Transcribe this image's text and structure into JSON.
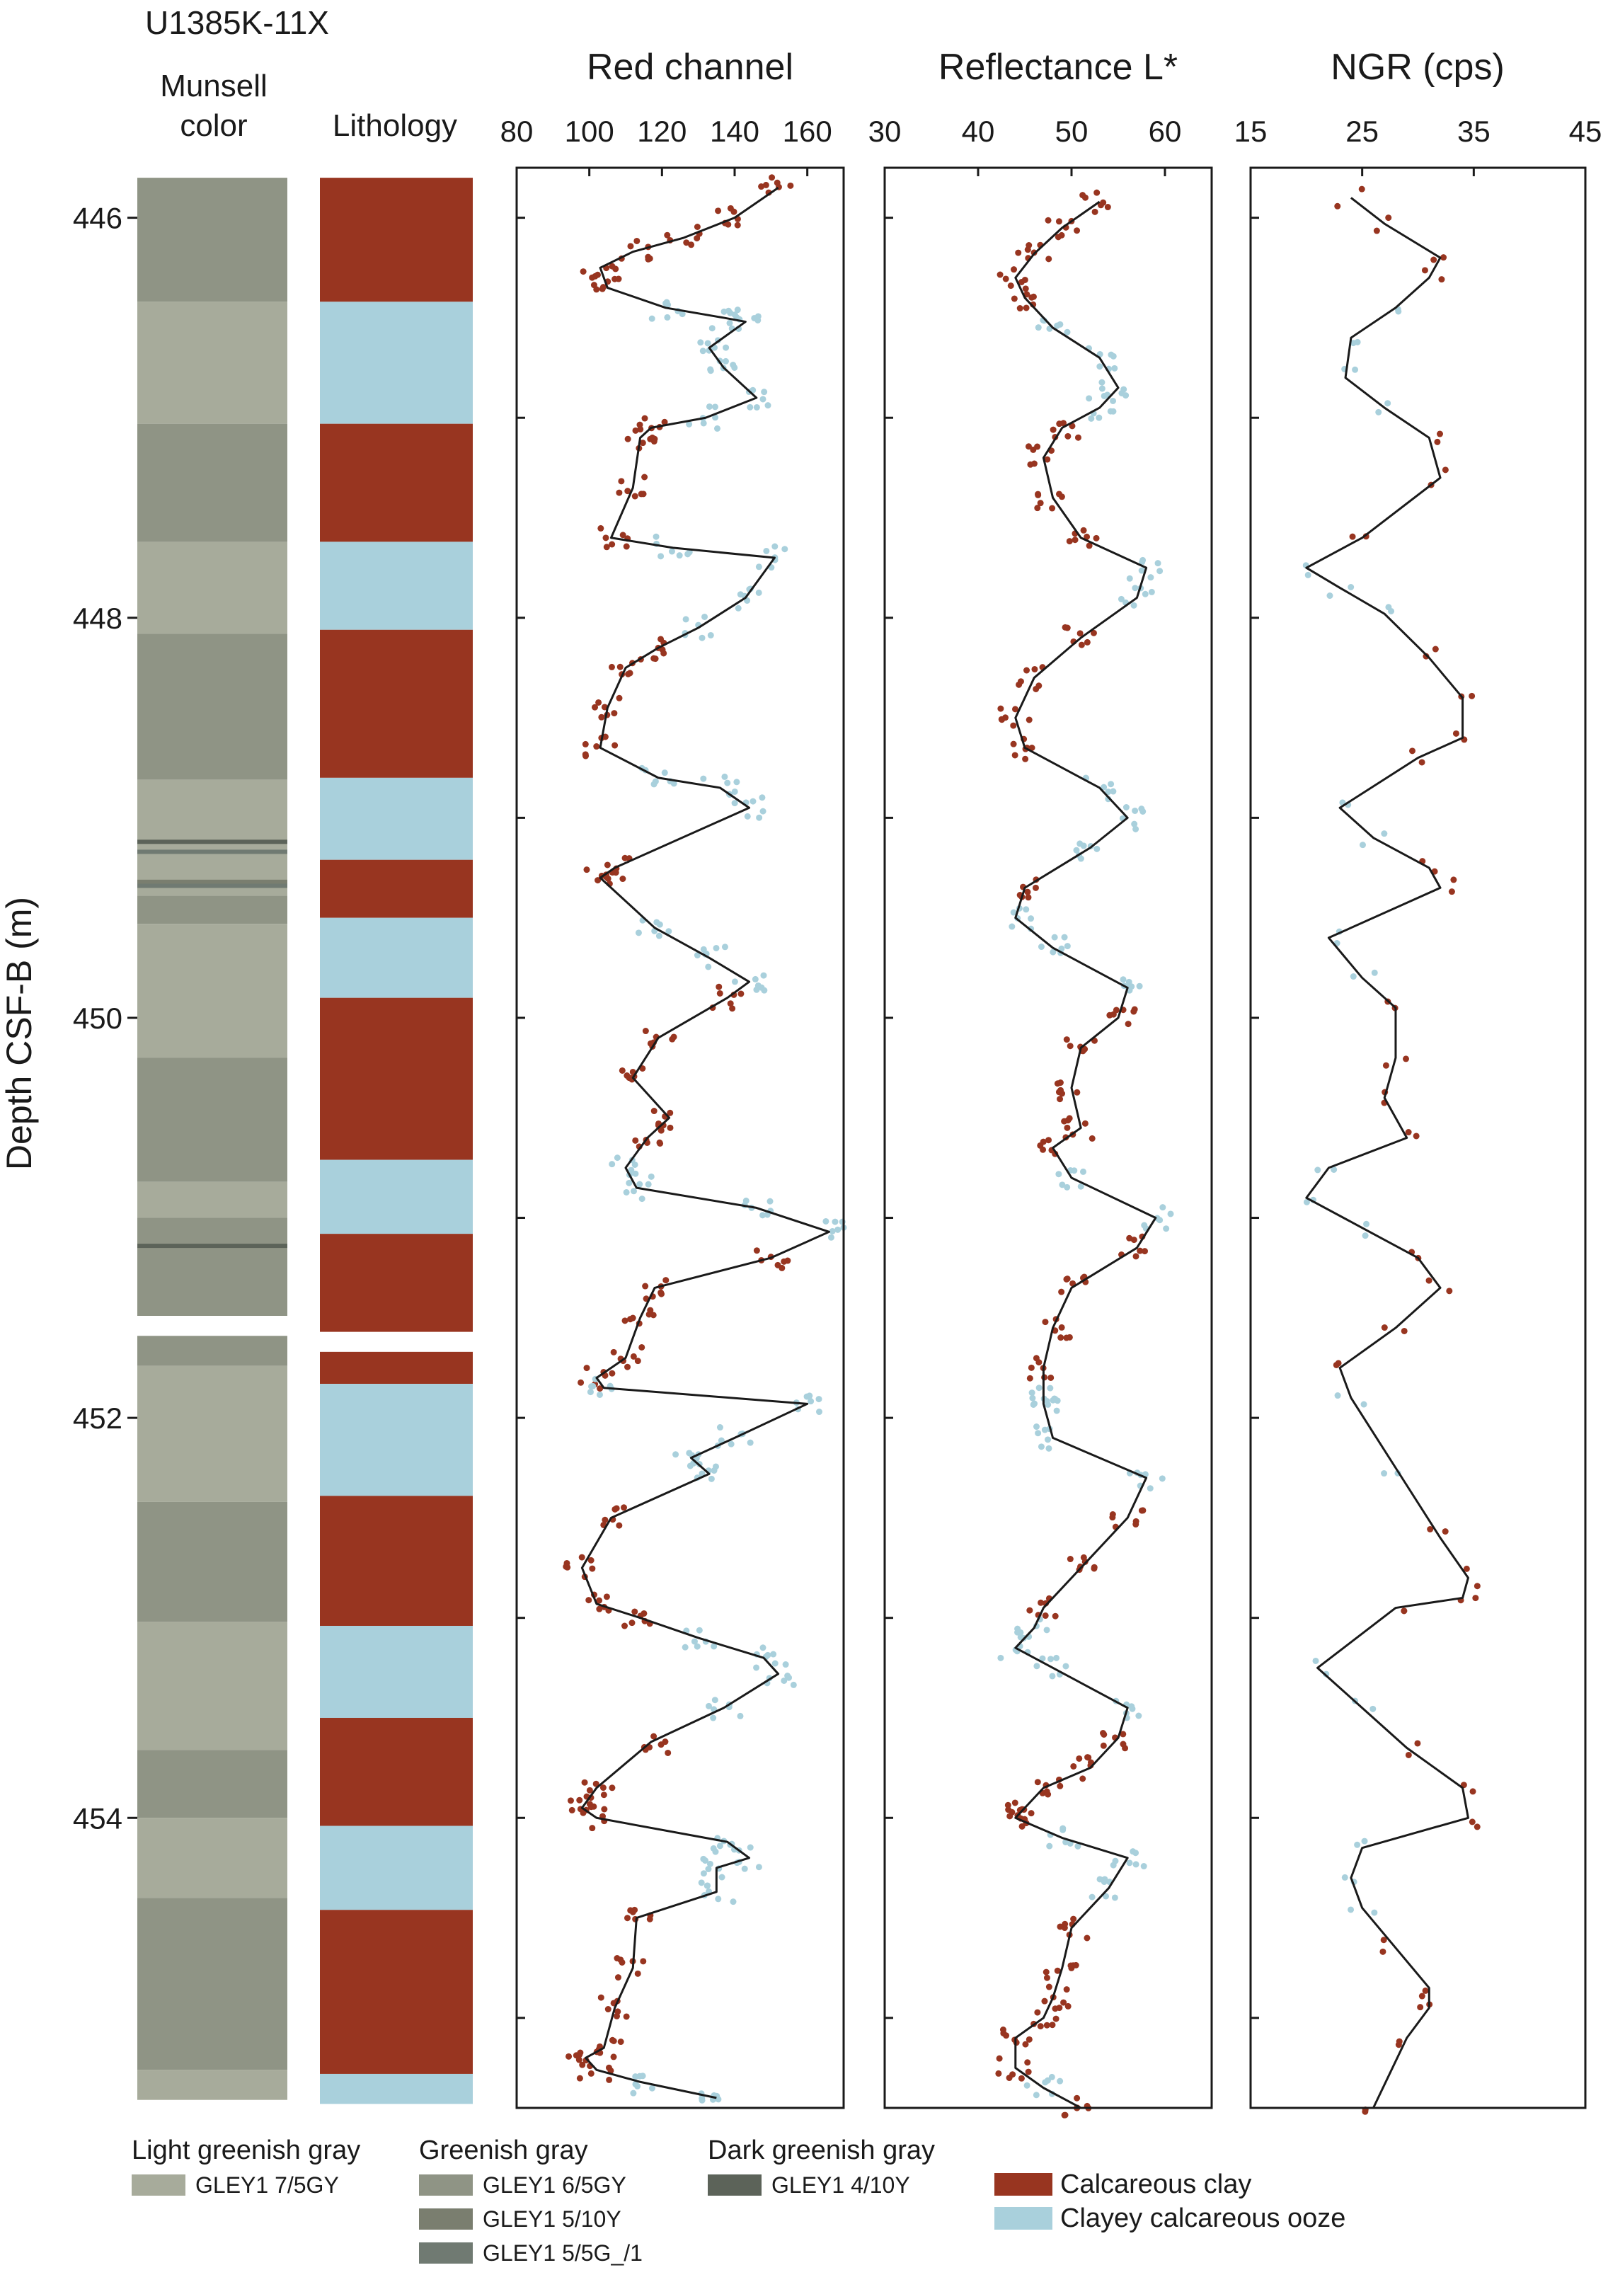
{
  "core_id": "U1385K-11X",
  "y_axis": {
    "label": "Depth CSF-B (m)",
    "range": [
      445.75,
      455.45
    ],
    "ticks": [
      446,
      448,
      450,
      452,
      454
    ],
    "minor_ticks": [
      446,
      447,
      448,
      449,
      450,
      451,
      452,
      453,
      454,
      455
    ]
  },
  "headers": {
    "munsell": [
      "Munsell",
      "color"
    ],
    "lithology": "Lithology"
  },
  "colors": {
    "light_greenish_gray": "#a7ab9b",
    "greenish_gray_6_5GY": "#8f9485",
    "greenish_gray_5_10Y": "#7a7e6f",
    "greenish_gray_5_5G_1": "#707a72",
    "dark_greenish_gray": "#5c6359",
    "calcareous_clay": "#983520",
    "clayey_calcareous_ooze": "#a9d0dc",
    "line": "#1a1a1a"
  },
  "munsell_intervals": [
    {
      "top": 445.8,
      "bottom": 446.42,
      "color": "greenish_gray_6_5GY"
    },
    {
      "top": 446.42,
      "bottom": 447.03,
      "color": "light_greenish_gray"
    },
    {
      "top": 447.03,
      "bottom": 447.62,
      "color": "greenish_gray_6_5GY"
    },
    {
      "top": 447.62,
      "bottom": 448.08,
      "color": "light_greenish_gray"
    },
    {
      "top": 448.08,
      "bottom": 448.81,
      "color": "greenish_gray_6_5GY"
    },
    {
      "top": 448.81,
      "bottom": 449.39,
      "color": "light_greenish_gray"
    },
    {
      "top": 449.39,
      "bottom": 449.53,
      "color": "greenish_gray_6_5GY"
    },
    {
      "top": 449.53,
      "bottom": 450.2,
      "color": "light_greenish_gray"
    },
    {
      "top": 450.2,
      "bottom": 450.82,
      "color": "greenish_gray_6_5GY"
    },
    {
      "top": 450.82,
      "bottom": 451.0,
      "color": "light_greenish_gray"
    },
    {
      "top": 451.0,
      "bottom": 451.49,
      "color": "greenish_gray_6_5GY"
    },
    {
      "top": 451.59,
      "bottom": 451.74,
      "color": "greenish_gray_6_5GY"
    },
    {
      "top": 451.74,
      "bottom": 452.42,
      "color": "light_greenish_gray"
    },
    {
      "top": 452.42,
      "bottom": 453.02,
      "color": "greenish_gray_6_5GY"
    },
    {
      "top": 453.02,
      "bottom": 453.66,
      "color": "light_greenish_gray"
    },
    {
      "top": 453.66,
      "bottom": 454.0,
      "color": "greenish_gray_6_5GY"
    },
    {
      "top": 454.0,
      "bottom": 454.4,
      "color": "light_greenish_gray"
    },
    {
      "top": 454.4,
      "bottom": 455.26,
      "color": "greenish_gray_6_5GY"
    },
    {
      "top": 455.26,
      "bottom": 455.41,
      "color": "light_greenish_gray"
    }
  ],
  "munsell_thin_bands": [
    {
      "depth": 449.12,
      "color": "dark_greenish_gray"
    },
    {
      "depth": 449.17,
      "color": "greenish_gray_5_5G_1"
    },
    {
      "depth": 449.32,
      "color": "greenish_gray_5_10Y"
    },
    {
      "depth": 449.34,
      "color": "greenish_gray_5_5G_1"
    },
    {
      "depth": 451.14,
      "color": "dark_greenish_gray"
    }
  ],
  "lithology_intervals": [
    {
      "top": 445.8,
      "bottom": 446.42,
      "type": "calcareous_clay"
    },
    {
      "top": 446.42,
      "bottom": 447.03,
      "type": "clayey_calcareous_ooze"
    },
    {
      "top": 447.03,
      "bottom": 447.62,
      "type": "calcareous_clay"
    },
    {
      "top": 447.62,
      "bottom": 448.06,
      "type": "clayey_calcareous_ooze"
    },
    {
      "top": 448.06,
      "bottom": 448.8,
      "type": "calcareous_clay"
    },
    {
      "top": 448.8,
      "bottom": 449.21,
      "type": "clayey_calcareous_ooze"
    },
    {
      "top": 449.21,
      "bottom": 449.5,
      "type": "calcareous_clay"
    },
    {
      "top": 449.5,
      "bottom": 449.9,
      "type": "clayey_calcareous_ooze"
    },
    {
      "top": 449.9,
      "bottom": 450.71,
      "type": "calcareous_clay"
    },
    {
      "top": 450.71,
      "bottom": 451.08,
      "type": "clayey_calcareous_ooze"
    },
    {
      "top": 451.08,
      "bottom": 451.57,
      "type": "calcareous_clay"
    },
    {
      "top": 451.67,
      "bottom": 451.83,
      "type": "calcareous_clay"
    },
    {
      "top": 451.83,
      "bottom": 452.39,
      "type": "clayey_calcareous_ooze"
    },
    {
      "top": 452.39,
      "bottom": 453.04,
      "type": "calcareous_clay"
    },
    {
      "top": 453.04,
      "bottom": 453.5,
      "type": "clayey_calcareous_ooze"
    },
    {
      "top": 453.5,
      "bottom": 454.04,
      "type": "calcareous_clay"
    },
    {
      "top": 454.04,
      "bottom": 454.46,
      "type": "clayey_calcareous_ooze"
    },
    {
      "top": 454.46,
      "bottom": 455.28,
      "type": "calcareous_clay"
    },
    {
      "top": 455.28,
      "bottom": 455.43,
      "type": "clayey_calcareous_ooze"
    }
  ],
  "chart_data": [
    {
      "type": "line",
      "title": "Red channel",
      "xlim": [
        80,
        170
      ],
      "xticks": [
        80,
        100,
        120,
        140,
        160
      ],
      "y_reversed": true,
      "series": [
        {
          "x": [
            152,
            140,
            126,
            112,
            103,
            105,
            121,
            137,
            143,
            133,
            137,
            146,
            132,
            117,
            114,
            112,
            106,
            123,
            151,
            143,
            130,
            119,
            110,
            105,
            103,
            119,
            136,
            144,
            107,
            103,
            118,
            133,
            144,
            138,
            119,
            112,
            122,
            116,
            110,
            113,
            146,
            166,
            150,
            118,
            114,
            110,
            102,
            104,
            160,
            140,
            128,
            133,
            106,
            98,
            102,
            114,
            130,
            148,
            152,
            137,
            117,
            102,
            98,
            102,
            138,
            144,
            135,
            135,
            113,
            112,
            107,
            104,
            99,
            102,
            114,
            135
          ],
          "y": [
            445.85,
            446.0,
            446.1,
            446.17,
            446.25,
            446.35,
            446.45,
            446.5,
            446.52,
            446.65,
            446.75,
            446.9,
            447.0,
            447.05,
            447.1,
            447.35,
            447.6,
            447.65,
            447.7,
            447.9,
            448.05,
            448.15,
            448.25,
            448.45,
            448.65,
            448.8,
            448.85,
            448.95,
            449.25,
            449.3,
            449.55,
            449.7,
            449.82,
            449.9,
            450.1,
            450.3,
            450.5,
            450.6,
            450.75,
            450.85,
            450.95,
            451.07,
            451.2,
            451.35,
            451.5,
            451.7,
            451.8,
            451.85,
            451.93,
            452.1,
            452.2,
            452.28,
            452.5,
            452.75,
            452.93,
            453.0,
            453.1,
            453.2,
            453.28,
            453.45,
            453.62,
            453.85,
            453.95,
            454.0,
            454.12,
            454.2,
            454.25,
            454.37,
            454.5,
            454.75,
            454.95,
            455.15,
            455.2,
            455.26,
            455.32,
            455.4
          ]
        }
      ]
    },
    {
      "type": "line",
      "title": "Reflectance L*",
      "xlim": [
        30,
        65
      ],
      "xticks": [
        30,
        40,
        50,
        60
      ],
      "y_reversed": true,
      "series": [
        {
          "x": [
            53,
            49,
            46,
            44,
            45,
            48,
            53,
            55,
            53,
            49,
            47,
            48,
            51,
            58,
            57,
            51,
            46,
            44,
            45,
            53,
            56,
            52,
            45,
            44,
            48,
            56,
            55,
            51,
            50,
            51,
            48,
            50,
            59,
            57,
            50,
            48,
            47,
            47,
            47,
            48,
            58,
            56,
            51,
            47,
            46,
            44,
            48,
            56,
            55,
            52,
            47,
            45,
            44,
            49,
            56,
            54,
            50,
            49,
            48,
            47,
            44,
            44,
            47,
            51
          ],
          "y": [
            445.92,
            446.05,
            446.18,
            446.3,
            446.4,
            446.55,
            446.7,
            446.85,
            446.95,
            447.05,
            447.2,
            447.4,
            447.6,
            447.75,
            447.9,
            448.1,
            448.3,
            448.5,
            448.65,
            448.85,
            449.0,
            449.15,
            449.35,
            449.5,
            449.65,
            449.85,
            450.0,
            450.15,
            450.35,
            450.55,
            450.65,
            450.8,
            451.0,
            451.15,
            451.35,
            451.55,
            451.75,
            451.9,
            451.93,
            452.1,
            452.3,
            452.5,
            452.75,
            452.95,
            453.05,
            453.15,
            453.25,
            453.45,
            453.6,
            453.75,
            453.85,
            453.95,
            454.0,
            454.1,
            454.2,
            454.35,
            454.55,
            454.75,
            454.9,
            455.0,
            455.1,
            455.25,
            455.35,
            455.45
          ]
        }
      ]
    },
    {
      "type": "line",
      "title": "NGR (cps)",
      "xlim": [
        15,
        45
      ],
      "xticks": [
        15,
        25,
        35,
        45
      ],
      "y_reversed": true,
      "series": [
        {
          "x": [
            24,
            27,
            32,
            31,
            28,
            24,
            23.5,
            27,
            31,
            32,
            25,
            20,
            23,
            27,
            31,
            34,
            34,
            30,
            23,
            26,
            31,
            32,
            22,
            25,
            28,
            28,
            27,
            29,
            22,
            20,
            25,
            30,
            32,
            28,
            23,
            24,
            28,
            32,
            34.5,
            34,
            28,
            21,
            25,
            29,
            34,
            34.5,
            25,
            24,
            25,
            28,
            31,
            31,
            29,
            26
          ],
          "y": [
            445.9,
            446.03,
            446.2,
            446.3,
            446.45,
            446.6,
            446.8,
            446.95,
            447.1,
            447.3,
            447.6,
            447.75,
            447.85,
            447.98,
            448.2,
            448.4,
            448.6,
            448.7,
            448.95,
            449.1,
            449.25,
            449.35,
            449.6,
            449.8,
            449.95,
            450.2,
            450.4,
            450.6,
            450.75,
            450.9,
            451.05,
            451.2,
            451.35,
            451.55,
            451.75,
            451.9,
            452.25,
            452.6,
            452.8,
            452.9,
            452.95,
            453.25,
            453.45,
            453.65,
            453.85,
            454.0,
            454.15,
            454.3,
            454.45,
            454.65,
            454.85,
            454.95,
            455.1,
            455.45
          ]
        }
      ]
    }
  ],
  "legend": {
    "munsell_groups": [
      {
        "header": "Light greenish gray",
        "items": [
          {
            "label": "GLEY1 7/5GY",
            "color": "light_greenish_gray"
          }
        ]
      },
      {
        "header": "Greenish gray",
        "items": [
          {
            "label": "GLEY1 6/5GY",
            "color": "greenish_gray_6_5GY"
          },
          {
            "label": "GLEY1 5/10Y",
            "color": "greenish_gray_5_10Y"
          },
          {
            "label": "GLEY1 5/5G_/1",
            "color": "greenish_gray_5_5G_1"
          }
        ]
      },
      {
        "header": "Dark greenish gray",
        "items": [
          {
            "label": "GLEY1 4/10Y",
            "color": "dark_greenish_gray"
          }
        ]
      }
    ],
    "lithology": [
      {
        "label": "Calcareous clay",
        "color": "calcareous_clay"
      },
      {
        "label": "Clayey calcareous ooze",
        "color": "clayey_calcareous_ooze"
      }
    ]
  }
}
